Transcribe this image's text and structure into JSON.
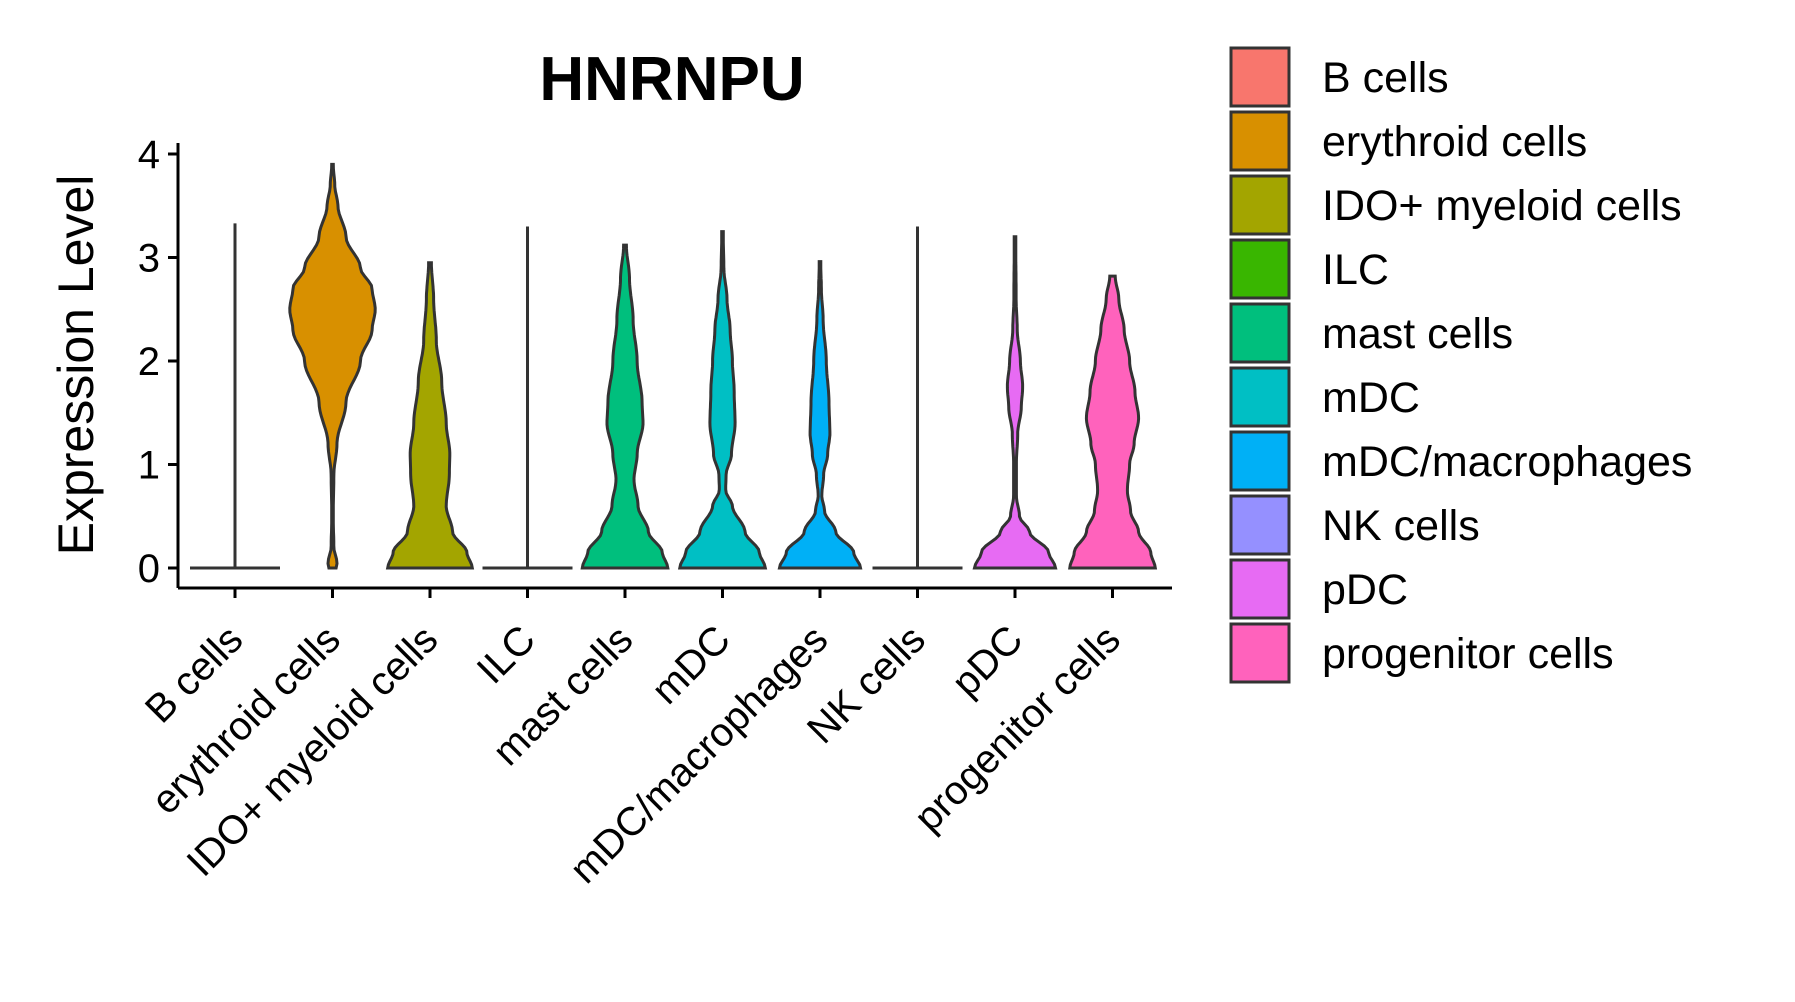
{
  "chart_data": {
    "type": "violin",
    "title": "HNRNPU",
    "xlabel": "",
    "ylabel": "Expression Level",
    "ylim": [
      -0.2,
      4.1
    ],
    "yticks": [
      "0",
      "1",
      "2",
      "3",
      "4"
    ],
    "legend_position": "right",
    "categories": [
      "B cells",
      "erythroid cells",
      "IDO+ myeloid cells",
      "ILC",
      "mast cells",
      "mDC",
      "mDC/macrophages",
      "NK cells",
      "pDC",
      "progenitor cells"
    ],
    "colors": [
      "#F8766D",
      "#D89000",
      "#A3A500",
      "#39B600",
      "#00BF7D",
      "#00BFC4",
      "#00B0F6",
      "#9590FF",
      "#E76BF3",
      "#FF62BC"
    ],
    "series": [
      {
        "name": "B cells",
        "max": 3.33,
        "profile": [
          [
            0,
            1.0
          ],
          [
            0.02,
            0.0
          ],
          [
            3.33,
            0.0
          ]
        ]
      },
      {
        "name": "erythroid cells",
        "max": 3.9,
        "profile": [
          [
            0,
            0.08
          ],
          [
            0.05,
            0.1
          ],
          [
            0.2,
            0.03
          ],
          [
            0.5,
            0.015
          ],
          [
            0.9,
            0.03
          ],
          [
            1.2,
            0.1
          ],
          [
            1.6,
            0.3
          ],
          [
            2.0,
            0.62
          ],
          [
            2.3,
            0.88
          ],
          [
            2.5,
            0.95
          ],
          [
            2.7,
            0.88
          ],
          [
            2.9,
            0.62
          ],
          [
            3.2,
            0.3
          ],
          [
            3.5,
            0.12
          ],
          [
            3.7,
            0.05
          ],
          [
            3.9,
            0.015
          ]
        ]
      },
      {
        "name": "IDO+ myeloid cells",
        "max": 2.95,
        "profile": [
          [
            0,
            0.94
          ],
          [
            0.15,
            0.82
          ],
          [
            0.35,
            0.5
          ],
          [
            0.6,
            0.36
          ],
          [
            0.9,
            0.43
          ],
          [
            1.1,
            0.44
          ],
          [
            1.4,
            0.36
          ],
          [
            1.8,
            0.26
          ],
          [
            2.2,
            0.14
          ],
          [
            2.6,
            0.08
          ],
          [
            2.95,
            0.03
          ]
        ]
      },
      {
        "name": "ILC",
        "max": 3.3,
        "profile": [
          [
            0,
            1.0
          ],
          [
            0.02,
            0.0
          ],
          [
            3.3,
            0.0
          ]
        ]
      },
      {
        "name": "mast cells",
        "max": 3.12,
        "profile": [
          [
            0,
            0.95
          ],
          [
            0.15,
            0.83
          ],
          [
            0.35,
            0.52
          ],
          [
            0.6,
            0.29
          ],
          [
            0.85,
            0.2
          ],
          [
            1.1,
            0.27
          ],
          [
            1.4,
            0.4
          ],
          [
            1.6,
            0.38
          ],
          [
            2.0,
            0.27
          ],
          [
            2.4,
            0.18
          ],
          [
            2.8,
            0.1
          ],
          [
            3.12,
            0.03
          ]
        ]
      },
      {
        "name": "mDC",
        "max": 3.25,
        "profile": [
          [
            0,
            0.95
          ],
          [
            0.15,
            0.82
          ],
          [
            0.35,
            0.5
          ],
          [
            0.6,
            0.22
          ],
          [
            0.75,
            0.07
          ],
          [
            0.9,
            0.08
          ],
          [
            1.1,
            0.2
          ],
          [
            1.4,
            0.28
          ],
          [
            1.7,
            0.26
          ],
          [
            2.0,
            0.22
          ],
          [
            2.3,
            0.17
          ],
          [
            2.6,
            0.1
          ],
          [
            2.9,
            0.03
          ],
          [
            3.25,
            0.015
          ]
        ]
      },
      {
        "name": "mDC/macrophages",
        "max": 2.96,
        "profile": [
          [
            0,
            0.9
          ],
          [
            0.15,
            0.75
          ],
          [
            0.35,
            0.35
          ],
          [
            0.55,
            0.1
          ],
          [
            0.7,
            0.04
          ],
          [
            0.9,
            0.08
          ],
          [
            1.1,
            0.17
          ],
          [
            1.3,
            0.22
          ],
          [
            1.6,
            0.2
          ],
          [
            2.0,
            0.14
          ],
          [
            2.4,
            0.07
          ],
          [
            2.7,
            0.03
          ],
          [
            2.96,
            0.015
          ]
        ]
      },
      {
        "name": "NK cells",
        "max": 3.3,
        "profile": [
          [
            0,
            1.0
          ],
          [
            0.02,
            0.0
          ],
          [
            3.3,
            0.0
          ]
        ]
      },
      {
        "name": "pDC",
        "max": 3.2,
        "profile": [
          [
            0,
            0.9
          ],
          [
            0.15,
            0.75
          ],
          [
            0.35,
            0.32
          ],
          [
            0.5,
            0.1
          ],
          [
            0.7,
            0.03
          ],
          [
            1.0,
            0.03
          ],
          [
            1.3,
            0.06
          ],
          [
            1.55,
            0.14
          ],
          [
            1.75,
            0.17
          ],
          [
            2.0,
            0.12
          ],
          [
            2.3,
            0.05
          ],
          [
            2.6,
            0.025
          ],
          [
            3.2,
            0.015
          ]
        ]
      },
      {
        "name": "progenitor cells",
        "max": 2.82,
        "profile": [
          [
            0,
            0.95
          ],
          [
            0.15,
            0.85
          ],
          [
            0.35,
            0.58
          ],
          [
            0.55,
            0.4
          ],
          [
            0.75,
            0.33
          ],
          [
            1.0,
            0.38
          ],
          [
            1.2,
            0.48
          ],
          [
            1.45,
            0.58
          ],
          [
            1.7,
            0.5
          ],
          [
            2.0,
            0.38
          ],
          [
            2.3,
            0.26
          ],
          [
            2.6,
            0.14
          ],
          [
            2.82,
            0.06
          ]
        ]
      }
    ]
  }
}
